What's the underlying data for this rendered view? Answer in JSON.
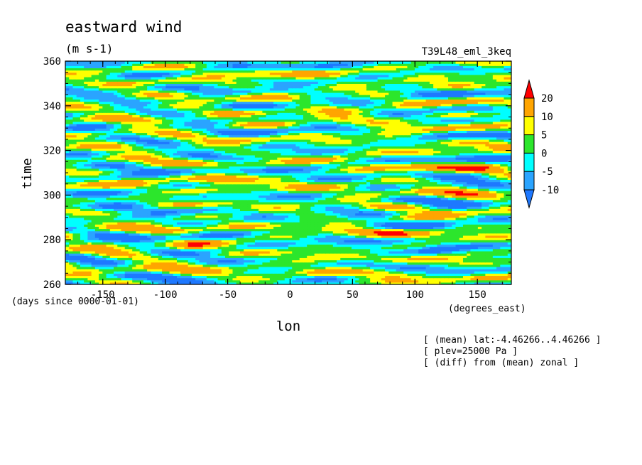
{
  "chart_data": {
    "type": "heatmap",
    "title": "eastward wind",
    "units": "(m s-1)",
    "run_label": "T39L48_eml_3keq",
    "xlabel": "lon",
    "xunits": "(degrees_east)",
    "ylabel": "time",
    "yunits": "(days since 0000-01-01)",
    "xlim": [
      -180,
      177.1875
    ],
    "ylim": [
      260,
      360
    ],
    "xticks": [
      -150,
      -100,
      -50,
      0,
      50,
      100,
      150
    ],
    "yticks": [
      260,
      280,
      300,
      320,
      340,
      360
    ],
    "colorbar": {
      "levels": [
        -10,
        -5,
        0,
        5,
        10,
        20
      ],
      "colors": [
        "#1e78ff",
        "#2aa4ff",
        "#00ffff",
        "#2ce62c",
        "#ffff00",
        "#ffa500",
        "#ff0000"
      ],
      "extend": "both"
    },
    "notes": [
      "[ (mean) lat:-4.46266..4.46266 ]",
      "[ plev=25000 Pa ]",
      "[ (diff) from (mean) zonal ]"
    ]
  }
}
